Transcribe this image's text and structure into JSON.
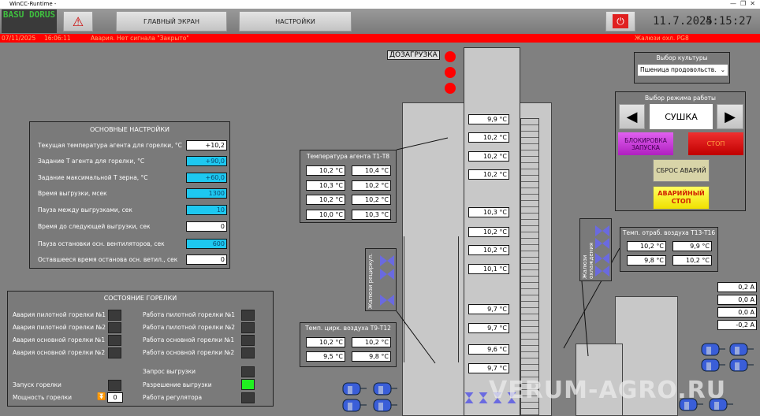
{
  "window": {
    "title": "WinCC-Runtime -"
  },
  "logo": {
    "text": "BASU DORUS",
    "color": "#2ea82e"
  },
  "toolbar": {
    "main_screen": "ГЛАВНЫЙ ЭКРАН",
    "settings": "НАСТРОЙКИ",
    "date": "11.7.2025",
    "time": "4:15:27"
  },
  "alarm_bar": {
    "date": "07/11/2025",
    "time": "16:06:11",
    "message": "Авария. Нет сигнала \"Закрыто\"",
    "right_message": "Жалюзи охл. PG8",
    "color": "#ff0000"
  },
  "main_settings": {
    "title": "ОСНОВНЫЕ НАСТРОЙКИ",
    "rows": [
      {
        "label": "Текущая температура агента для горелки, °С",
        "value": "+10,2",
        "editable": false
      },
      {
        "label": "Задание Т агента для горелки, °С",
        "value": "+90,0",
        "editable": true
      },
      {
        "label": "Задание максимальной Т зерна, °С",
        "value": "+60,0",
        "editable": true
      },
      {
        "label": "Время выгрузки, мсек",
        "value": "1300",
        "editable": true
      },
      {
        "label": "Пауза между выгрузками, сек",
        "value": "10",
        "editable": true
      },
      {
        "label": "Время до следующей выгрузки, сек",
        "value": "0",
        "editable": false
      },
      {
        "label": "Пауза остановки осн. вентиляторов, сек",
        "value": "600",
        "editable": true
      },
      {
        "label": "Оставшееся время останова осн. ветил., сек",
        "value": "0",
        "editable": false
      }
    ]
  },
  "burner_state": {
    "title": "СОСТОЯНИЕ ГОРЕЛКИ",
    "left": [
      {
        "label": "Авария пилотной горелки №1",
        "on": false
      },
      {
        "label": "Авария пилотной горелки №2",
        "on": false
      },
      {
        "label": "Авария основной горелки №1",
        "on": false
      },
      {
        "label": "Авария основной горелки №2",
        "on": false
      }
    ],
    "right": [
      {
        "label": "Работа пилотной горелки №1",
        "on": false
      },
      {
        "label": "Работа пилотной горелки №2",
        "on": false
      },
      {
        "label": "Работа основной горелки №1",
        "on": false
      },
      {
        "label": "Работа основной горелки №2",
        "on": false
      },
      {
        "label": "Запрос выгрузки",
        "on": false
      },
      {
        "label": "Разрешение выгрузки",
        "on": true
      },
      {
        "label": "Работа регулятора",
        "on": false
      }
    ],
    "start_label": "Запуск горелки",
    "power_label": "Мощность горелки",
    "power_value": "0"
  },
  "culture": {
    "title": "Выбор культуры",
    "selected": "Пшеница продовольств."
  },
  "mode": {
    "title": "Выбор режима работы",
    "current": "СУШКА",
    "block": "БЛОКИРОВКА ЗАПУСКА",
    "stop": "СТОП",
    "reset": "СБРОС АВАРИЙ",
    "estop": "АВАРИЙНЫЙ СТОП"
  },
  "dozagruzka": "ДОЗАГРУЗКА",
  "column_temps": [
    "9,9 °C",
    "10,2 °C",
    "10,2 °C",
    "10,2 °C",
    "10,3 °C",
    "10,2 °C",
    "10,2 °C",
    "10,1 °C",
    "9,7 °C",
    "9,7 °C",
    "9,6 °C",
    "9,7 °C"
  ],
  "agent_temps": {
    "title": "Температура агента Т1-Т8",
    "values": [
      "10,2 °C",
      "10,4 °C",
      "10,3 °C",
      "10,2 °C",
      "10,2 °C",
      "10,2 °C",
      "10,0 °C",
      "10,3 °C"
    ]
  },
  "circ_temps": {
    "title": "Темп. цирк. воздуха Т9-Т12",
    "values": [
      "10,2 °C",
      "10,2 °C",
      "9,5 °C",
      "9,8 °C"
    ]
  },
  "exhaust_temps": {
    "title": "Темп. отраб. воздуха Т13-Т16",
    "values": [
      "10,2 °C",
      "9,9 °C",
      "9,8 °C",
      "10,2 °C"
    ]
  },
  "louvers": {
    "recirc": "Жалюзи рециркул.",
    "cooling": "Жалюзи охлаждения"
  },
  "currents": [
    "0,2 A",
    "0,0 A",
    "0,0 A",
    "-0,2 A"
  ],
  "watermark": "VERUM-AGRO.RU"
}
